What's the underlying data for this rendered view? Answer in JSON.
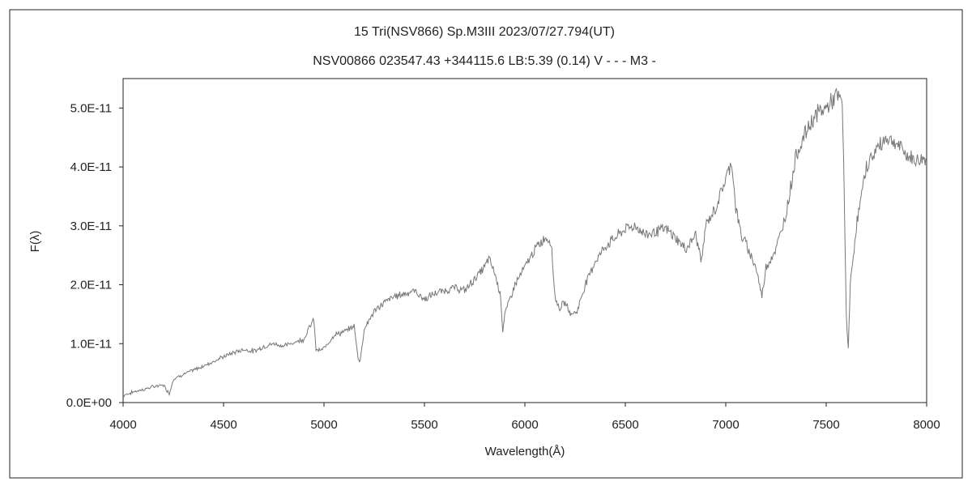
{
  "chart_data": {
    "type": "line",
    "title": "15 Tri(NSV866)   Sp.M3III   2023/07/27.794(UT)",
    "subtitle": "NSV00866 023547.43 +344115.6 LB:5.39 (0.14) V - - - M3 -",
    "xlabel": "Wavelength(Å)",
    "ylabel": "F(λ)",
    "xlim": [
      4000,
      8000
    ],
    "ylim": [
      0,
      5.5e-11
    ],
    "xticks": [
      4000,
      4500,
      5000,
      5500,
      6000,
      6500,
      7000,
      7500,
      8000
    ],
    "xtick_labels": [
      "4000",
      "4500",
      "5000",
      "5500",
      "6000",
      "6500",
      "7000",
      "7500",
      "8000"
    ],
    "yticks": [
      0,
      1e-11,
      2e-11,
      3e-11,
      4e-11,
      5e-11
    ],
    "ytick_labels": [
      "0.0E+00",
      "1.0E-11",
      "2.0E-11",
      "3.0E-11",
      "4.0E-11",
      "5.0E-11"
    ],
    "grid": false,
    "line_color": "#777777",
    "series": [
      {
        "x": [
          4000,
          4050,
          4100,
          4150,
          4200,
          4230,
          4250,
          4300,
          4350,
          4400,
          4450,
          4500,
          4550,
          4600,
          4650,
          4700,
          4750,
          4800,
          4850,
          4900,
          4930,
          4950,
          4960,
          4980,
          5000,
          5050,
          5100,
          5150,
          5170,
          5180,
          5200,
          5250,
          5300,
          5350,
          5400,
          5450,
          5500,
          5550,
          5600,
          5650,
          5700,
          5750,
          5800,
          5820,
          5850,
          5880,
          5890,
          5900,
          5950,
          6000,
          6050,
          6100,
          6130,
          6150,
          6170,
          6200,
          6230,
          6260,
          6300,
          6350,
          6400,
          6450,
          6500,
          6550,
          6600,
          6650,
          6700,
          6750,
          6800,
          6850,
          6880,
          6900,
          6950,
          7000,
          7030,
          7050,
          7080,
          7100,
          7150,
          7180,
          7200,
          7250,
          7300,
          7350,
          7400,
          7450,
          7500,
          7550,
          7580,
          7590,
          7600,
          7610,
          7620,
          7650,
          7700,
          7750,
          7800,
          7850,
          7900,
          7950,
          8000
        ],
        "y": [
          1.2e-12,
          1.8e-12,
          2.2e-12,
          2.7e-12,
          3e-12,
          1.5e-12,
          4e-12,
          4.8e-12,
          5.5e-12,
          6.2e-12,
          7e-12,
          7.8e-12,
          8.5e-12,
          9e-12,
          8.7e-12,
          9.5e-12,
          1e-11,
          9.6e-12,
          1.02e-11,
          1.08e-11,
          1.3e-11,
          1.4e-11,
          9e-12,
          8.8e-12,
          9.2e-12,
          1.15e-11,
          1.2e-11,
          1.3e-11,
          7.5e-12,
          7e-12,
          1.25e-11,
          1.55e-11,
          1.7e-11,
          1.8e-11,
          1.85e-11,
          1.9e-11,
          1.75e-11,
          1.85e-11,
          1.9e-11,
          1.95e-11,
          1.9e-11,
          2.1e-11,
          2.3e-11,
          2.45e-11,
          2.2e-11,
          1.8e-11,
          1.2e-11,
          1.5e-11,
          2e-11,
          2.3e-11,
          2.6e-11,
          2.8e-11,
          2.75e-11,
          1.8e-11,
          1.6e-11,
          1.7e-11,
          1.5e-11,
          1.55e-11,
          2e-11,
          2.4e-11,
          2.65e-11,
          2.8e-11,
          2.95e-11,
          3e-11,
          2.85e-11,
          2.9e-11,
          2.95e-11,
          2.8e-11,
          2.6e-11,
          2.85e-11,
          2.4e-11,
          3e-11,
          3.3e-11,
          3.8e-11,
          4.1e-11,
          3.3e-11,
          2.8e-11,
          2.7e-11,
          2.3e-11,
          1.8e-11,
          2.3e-11,
          2.6e-11,
          3.2e-11,
          4.2e-11,
          4.6e-11,
          4.9e-11,
          5e-11,
          5.2e-11,
          5.1e-11,
          3.5e-11,
          1.5e-11,
          9e-12,
          2e-11,
          3e-11,
          4e-11,
          4.3e-11,
          4.5e-11,
          4.4e-11,
          4.2e-11,
          4.1e-11,
          4.15e-11
        ]
      }
    ]
  }
}
